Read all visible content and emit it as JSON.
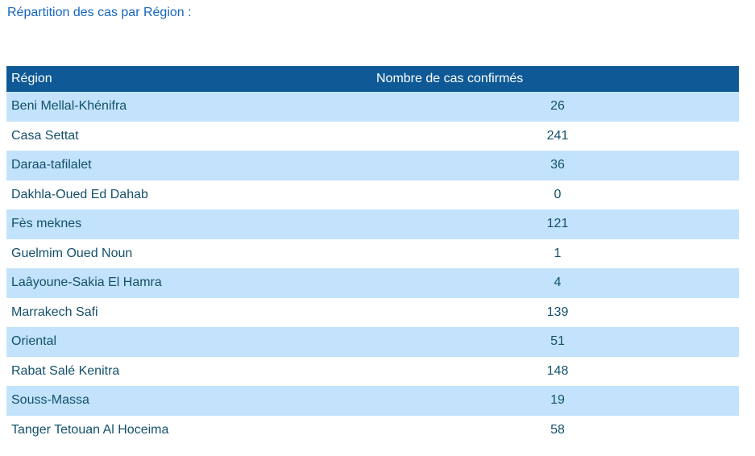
{
  "page": {
    "title": "Répartition des cas par Région :"
  },
  "table": {
    "columns": {
      "region": "Région",
      "cases": "Nombre de cas confirmés"
    },
    "rows": [
      {
        "region": "Beni Mellal-Khénifra",
        "cases": "26"
      },
      {
        "region": "Casa Settat",
        "cases": "241"
      },
      {
        "region": "Daraa-tafilalet",
        "cases": "36"
      },
      {
        "region": "Dakhla-Oued Ed Dahab",
        "cases": "0"
      },
      {
        "region": "Fès meknes",
        "cases": "121"
      },
      {
        "region": "Guelmim Oued Noun",
        "cases": "1"
      },
      {
        "region": "Laâyoune-Sakia El Hamra",
        "cases": "4"
      },
      {
        "region": "Marrakech Safi",
        "cases": "139"
      },
      {
        "region": "Oriental",
        "cases": "51"
      },
      {
        "region": "Rabat Salé Kenitra",
        "cases": "148"
      },
      {
        "region": "Souss-Massa",
        "cases": "19"
      },
      {
        "region": "Tanger Tetouan Al Hoceima",
        "cases": "58"
      }
    ]
  },
  "colors": {
    "header_bg": "#0f5a96",
    "header_text": "#ffffff",
    "row_alt_bg": "#c2e3fb",
    "row_bg": "#ffffff",
    "cell_text": "#14506b",
    "title_text": "#1565c0"
  },
  "chart_data": {
    "type": "table",
    "title": "Répartition des cas par Région :",
    "columns": [
      "Région",
      "Nombre de cas confirmés"
    ],
    "categories": [
      "Beni Mellal-Khénifra",
      "Casa Settat",
      "Daraa-tafilalet",
      "Dakhla-Oued Ed Dahab",
      "Fès meknes",
      "Guelmim Oued Noun",
      "Laâyoune-Sakia El Hamra",
      "Marrakech Safi",
      "Oriental",
      "Rabat Salé Kenitra",
      "Souss-Massa",
      "Tanger Tetouan Al Hoceima"
    ],
    "values": [
      26,
      241,
      36,
      0,
      121,
      1,
      4,
      139,
      51,
      148,
      19,
      58
    ]
  }
}
